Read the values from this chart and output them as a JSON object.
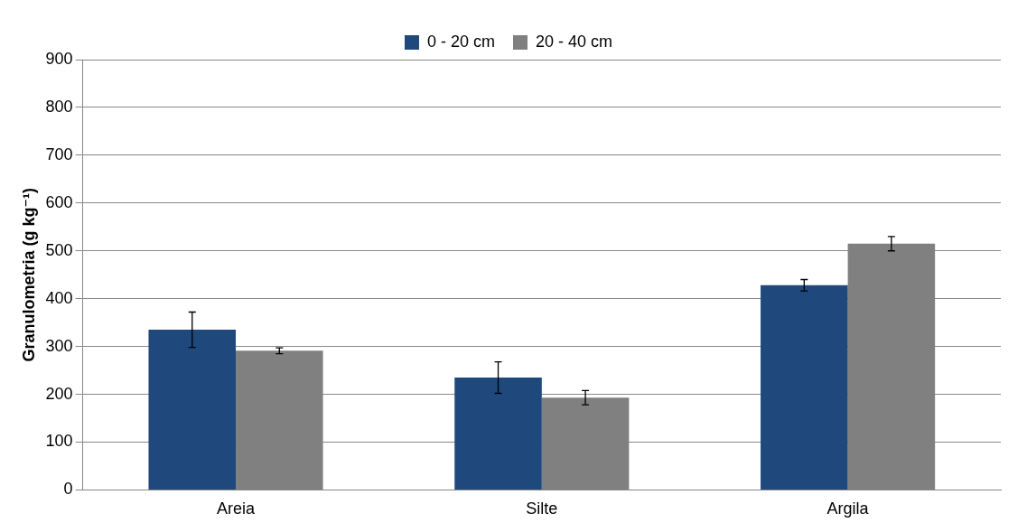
{
  "chart_data": {
    "type": "bar",
    "ylabel": "Granulometria (g kg⁻¹)",
    "categories": [
      "Areia",
      "Silte",
      "Argila"
    ],
    "series": [
      {
        "name": "0 - 20 cm",
        "color": "#1f497d",
        "values": [
          335,
          235,
          428
        ],
        "errors": [
          37,
          33,
          12
        ]
      },
      {
        "name": "20 - 40 cm",
        "color": "#808080",
        "values": [
          291,
          193,
          515
        ],
        "errors": [
          6,
          15,
          15
        ]
      }
    ],
    "ylim": [
      0,
      900
    ],
    "yticks": [
      0,
      100,
      200,
      300,
      400,
      500,
      600,
      700,
      800,
      900
    ],
    "grid": "y",
    "legend": "top"
  }
}
